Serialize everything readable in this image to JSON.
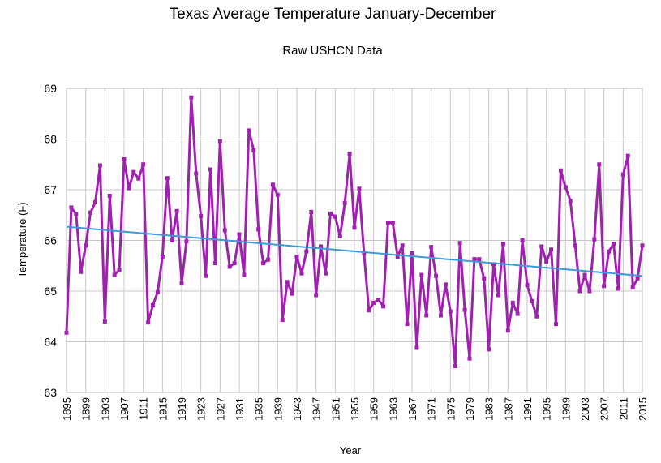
{
  "chart_data": {
    "type": "line",
    "title": "Texas Average Temperature January-December",
    "subtitle": "Raw USHCN Data",
    "xlabel": "Year",
    "ylabel": "Temperature (F)",
    "ylim": [
      63,
      69
    ],
    "xlim": [
      1895,
      2015
    ],
    "yticks": [
      "63",
      "64",
      "65",
      "66",
      "67",
      "68",
      "69"
    ],
    "xticks": [
      "1895",
      "1899",
      "1903",
      "1907",
      "1911",
      "1915",
      "1919",
      "1923",
      "1927",
      "1931",
      "1935",
      "1939",
      "1943",
      "1947",
      "1951",
      "1955",
      "1959",
      "1963",
      "1967",
      "1971",
      "1975",
      "1979",
      "1983",
      "1987",
      "1991",
      "1995",
      "1999",
      "2003",
      "2007",
      "2011",
      "2015"
    ],
    "grid": true,
    "legend": "none",
    "series": [
      {
        "color": "#a020b0",
        "marker": "square",
        "x": [
          1895,
          1896,
          1897,
          1898,
          1899,
          1900,
          1901,
          1902,
          1903,
          1904,
          1905,
          1906,
          1907,
          1908,
          1909,
          1910,
          1911,
          1912,
          1913,
          1914,
          1915,
          1916,
          1917,
          1918,
          1919,
          1920,
          1921,
          1922,
          1923,
          1924,
          1925,
          1926,
          1927,
          1928,
          1929,
          1930,
          1931,
          1932,
          1933,
          1934,
          1935,
          1936,
          1937,
          1938,
          1939,
          1940,
          1941,
          1942,
          1943,
          1944,
          1945,
          1946,
          1947,
          1948,
          1949,
          1950,
          1951,
          1952,
          1953,
          1954,
          1955,
          1956,
          1957,
          1958,
          1959,
          1960,
          1961,
          1962,
          1963,
          1964,
          1965,
          1966,
          1967,
          1968,
          1969,
          1970,
          1971,
          1972,
          1973,
          1974,
          1975,
          1976,
          1977,
          1978,
          1979,
          1980,
          1981,
          1982,
          1983,
          1984,
          1985,
          1986,
          1987,
          1988,
          1989,
          1990,
          1991,
          1992,
          1993,
          1994,
          1995,
          1996,
          1997,
          1998,
          1999,
          2000,
          2001,
          2002,
          2003,
          2004,
          2005,
          2006,
          2007,
          2008,
          2009,
          2010,
          2011,
          2012,
          2013,
          2014,
          2015
        ],
        "values": [
          64.18,
          66.65,
          66.52,
          65.38,
          65.9,
          66.55,
          66.75,
          67.48,
          64.4,
          66.88,
          65.32,
          65.42,
          67.6,
          67.03,
          67.35,
          67.22,
          67.5,
          64.38,
          64.72,
          64.98,
          65.68,
          67.23,
          66.0,
          66.58,
          65.15,
          65.98,
          68.82,
          67.32,
          66.48,
          65.3,
          67.4,
          65.55,
          67.96,
          66.2,
          65.48,
          65.55,
          66.12,
          65.32,
          68.17,
          67.78,
          66.22,
          65.55,
          65.62,
          67.1,
          66.9,
          64.43,
          65.18,
          64.95,
          65.68,
          65.35,
          65.78,
          66.56,
          64.92,
          65.88,
          65.35,
          66.53,
          66.47,
          66.08,
          66.74,
          67.71,
          66.25,
          67.02,
          65.75,
          64.62,
          64.77,
          64.83,
          64.7,
          66.35,
          66.35,
          65.68,
          65.9,
          64.35,
          65.75,
          63.88,
          65.32,
          64.52,
          65.87,
          65.3,
          64.52,
          65.13,
          64.6,
          63.52,
          65.95,
          64.63,
          63.67,
          65.63,
          65.63,
          65.25,
          63.85,
          65.53,
          64.92,
          65.93,
          64.22,
          64.77,
          64.55,
          66.0,
          65.12,
          64.8,
          64.5,
          65.88,
          65.58,
          65.82,
          64.35,
          67.38,
          67.05,
          66.78,
          65.9,
          65.0,
          65.32,
          65.0,
          66.02,
          67.5,
          65.1,
          65.78,
          65.93,
          65.05,
          67.3,
          67.67,
          65.07,
          65.25,
          65.9
        ]
      },
      {
        "name": "",
        "type": "trendline",
        "color": "#3d9ad9",
        "x": [
          1895,
          2015
        ],
        "values": [
          66.27,
          65.3
        ]
      }
    ]
  }
}
